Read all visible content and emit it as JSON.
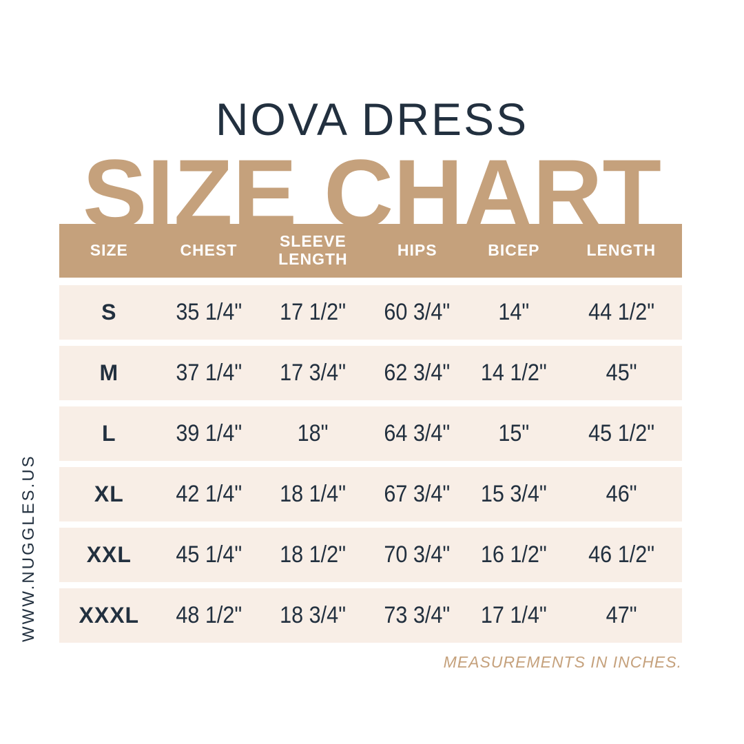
{
  "page": {
    "product_title": "NOVA DRESS",
    "chart_title": "SIZE CHART",
    "website": "WWW.NUGGLES.US",
    "note": "MEASUREMENTS IN INCHES."
  },
  "colors": {
    "tan": "#c5a17c",
    "cream_row": "#f8eee6",
    "navy_text": "#22303f",
    "background": "#ffffff",
    "header_text": "#ffffff"
  },
  "chart_data": {
    "type": "table",
    "title": "NOVA DRESS",
    "subtitle": "SIZE CHART",
    "note": "MEASUREMENTS IN INCHES.",
    "columns": [
      "SIZE",
      "CHEST",
      "SLEEVE LENGTH",
      "HIPS",
      "BICEP",
      "LENGTH"
    ],
    "rows": [
      [
        "S",
        "35 1/4\"",
        "17 1/2\"",
        "60 3/4\"",
        "14\"",
        "44 1/2\""
      ],
      [
        "M",
        "37 1/4\"",
        "17 3/4\"",
        "62 3/4\"",
        "14 1/2\"",
        "45\""
      ],
      [
        "L",
        "39 1/4\"",
        "18\"",
        "64 3/4\"",
        "15\"",
        "45 1/2\""
      ],
      [
        "XL",
        "42 1/4\"",
        "18 1/4\"",
        "67 3/4\"",
        "15 3/4\"",
        "46\""
      ],
      [
        "XXL",
        "45 1/4\"",
        "18 1/2\"",
        "70 3/4\"",
        "16 1/2\"",
        "46 1/2\""
      ],
      [
        "XXXL",
        "48 1/2\"",
        "18 3/4\"",
        "73 3/4\"",
        "17 1/4\"",
        "47\""
      ]
    ]
  }
}
